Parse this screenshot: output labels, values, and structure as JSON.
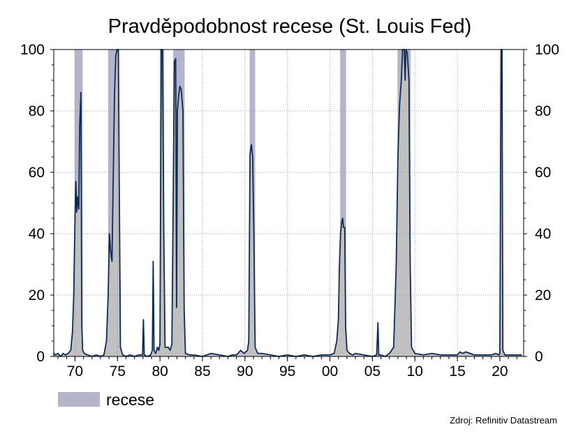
{
  "chart_data": {
    "type": "line",
    "title": "Pravděpodobnost recese (St. Louis Fed)",
    "source": "Zdroj: Refinitiv Datastream",
    "x_range": [
      1967.5,
      2022.8
    ],
    "ylim": [
      0,
      100
    ],
    "x_ticks": [
      {
        "value": 1970,
        "label": "70"
      },
      {
        "value": 1975,
        "label": "75"
      },
      {
        "value": 1980,
        "label": "80"
      },
      {
        "value": 1985,
        "label": "85"
      },
      {
        "value": 1990,
        "label": "90"
      },
      {
        "value": 1995,
        "label": "95"
      },
      {
        "value": 2000,
        "label": "00"
      },
      {
        "value": 2005,
        "label": "05"
      },
      {
        "value": 2010,
        "label": "10"
      },
      {
        "value": 2015,
        "label": "15"
      },
      {
        "value": 2020,
        "label": "20"
      }
    ],
    "y_ticks": [
      0,
      20,
      40,
      60,
      80,
      100
    ],
    "legend": {
      "label": "recese",
      "position": "bottom-left"
    },
    "colors": {
      "line": "#0d2b55",
      "recession_band": "#b4b4cc",
      "area_fill": "#c0c0c0",
      "grid": "#9a9a9a"
    },
    "recessions": [
      {
        "start": 1969.95,
        "end": 1970.9
      },
      {
        "start": 1973.9,
        "end": 1975.2
      },
      {
        "start": 1980.0,
        "end": 1980.5
      },
      {
        "start": 1981.55,
        "end": 1982.9
      },
      {
        "start": 1990.55,
        "end": 1991.2
      },
      {
        "start": 2001.2,
        "end": 2001.9
      },
      {
        "start": 2007.95,
        "end": 2009.5
      },
      {
        "start": 2020.1,
        "end": 2020.35
      }
    ],
    "series": [
      {
        "points": [
          [
            1967.5,
            1
          ],
          [
            1967.7,
            0.5
          ],
          [
            1968.0,
            1
          ],
          [
            1968.3,
            0
          ],
          [
            1968.6,
            1
          ],
          [
            1968.9,
            0.5
          ],
          [
            1969.2,
            1
          ],
          [
            1969.5,
            2
          ],
          [
            1969.7,
            8
          ],
          [
            1969.85,
            20
          ],
          [
            1970.0,
            45
          ],
          [
            1970.1,
            57
          ],
          [
            1970.2,
            47
          ],
          [
            1970.3,
            52
          ],
          [
            1970.45,
            48
          ],
          [
            1970.55,
            75
          ],
          [
            1970.7,
            86
          ],
          [
            1970.8,
            10
          ],
          [
            1970.9,
            2
          ],
          [
            1971.1,
            1
          ],
          [
            1971.5,
            0.5
          ],
          [
            1972.0,
            0
          ],
          [
            1972.5,
            0.5
          ],
          [
            1973.0,
            0
          ],
          [
            1973.4,
            0.5
          ],
          [
            1973.7,
            5
          ],
          [
            1973.9,
            20
          ],
          [
            1974.05,
            40
          ],
          [
            1974.2,
            34
          ],
          [
            1974.35,
            31
          ],
          [
            1974.5,
            58
          ],
          [
            1974.65,
            85
          ],
          [
            1974.8,
            98
          ],
          [
            1974.95,
            100
          ],
          [
            1975.1,
            100
          ],
          [
            1975.2,
            60
          ],
          [
            1975.35,
            3
          ],
          [
            1975.6,
            0.5
          ],
          [
            1976.0,
            0
          ],
          [
            1976.5,
            0.5
          ],
          [
            1977.0,
            0
          ],
          [
            1977.5,
            0.5
          ],
          [
            1977.95,
            0.5
          ],
          [
            1978.05,
            12
          ],
          [
            1978.15,
            0.5
          ],
          [
            1978.5,
            0
          ],
          [
            1978.9,
            0.5
          ],
          [
            1979.1,
            2
          ],
          [
            1979.2,
            31
          ],
          [
            1979.3,
            2
          ],
          [
            1979.5,
            1
          ],
          [
            1979.7,
            3
          ],
          [
            1979.85,
            2
          ],
          [
            1980.0,
            4
          ],
          [
            1980.15,
            100
          ],
          [
            1980.3,
            100
          ],
          [
            1980.45,
            40
          ],
          [
            1980.6,
            3
          ],
          [
            1980.8,
            3
          ],
          [
            1981.0,
            3
          ],
          [
            1981.2,
            2
          ],
          [
            1981.4,
            4
          ],
          [
            1981.55,
            50
          ],
          [
            1981.7,
            96
          ],
          [
            1981.85,
            97
          ],
          [
            1981.95,
            16
          ],
          [
            1982.05,
            80
          ],
          [
            1982.2,
            85
          ],
          [
            1982.35,
            88
          ],
          [
            1982.5,
            87
          ],
          [
            1982.7,
            80
          ],
          [
            1982.85,
            15
          ],
          [
            1983.0,
            1
          ],
          [
            1983.5,
            0.5
          ],
          [
            1984.0,
            0.5
          ],
          [
            1985.0,
            0
          ],
          [
            1986.0,
            1
          ],
          [
            1987.0,
            0.5
          ],
          [
            1988.0,
            0
          ],
          [
            1988.5,
            0.5
          ],
          [
            1989.0,
            0.5
          ],
          [
            1989.5,
            2
          ],
          [
            1989.9,
            1
          ],
          [
            1990.3,
            2
          ],
          [
            1990.45,
            5
          ],
          [
            1990.6,
            66
          ],
          [
            1990.75,
            69
          ],
          [
            1990.9,
            65
          ],
          [
            1991.05,
            40
          ],
          [
            1991.2,
            3
          ],
          [
            1991.5,
            1
          ],
          [
            1992.0,
            1
          ],
          [
            1993.0,
            0.5
          ],
          [
            1994.0,
            0
          ],
          [
            1995.0,
            0.5
          ],
          [
            1996.0,
            0
          ],
          [
            1997.0,
            0.5
          ],
          [
            1998.0,
            0
          ],
          [
            1999.0,
            0.5
          ],
          [
            2000.0,
            0.5
          ],
          [
            2000.5,
            1
          ],
          [
            2000.8,
            5
          ],
          [
            2001.0,
            12
          ],
          [
            2001.1,
            28
          ],
          [
            2001.25,
            40
          ],
          [
            2001.4,
            44
          ],
          [
            2001.5,
            45
          ],
          [
            2001.6,
            42
          ],
          [
            2001.75,
            42
          ],
          [
            2001.85,
            10
          ],
          [
            2002.0,
            2
          ],
          [
            2002.3,
            1
          ],
          [
            2002.7,
            0.5
          ],
          [
            2003.0,
            1
          ],
          [
            2004.0,
            0.5
          ],
          [
            2005.0,
            0
          ],
          [
            2005.5,
            0.5
          ],
          [
            2005.65,
            11
          ],
          [
            2005.75,
            0.5
          ],
          [
            2006.0,
            0.5
          ],
          [
            2006.5,
            0
          ],
          [
            2007.0,
            1
          ],
          [
            2007.5,
            3
          ],
          [
            2007.8,
            30
          ],
          [
            2008.0,
            65
          ],
          [
            2008.2,
            82
          ],
          [
            2008.4,
            90
          ],
          [
            2008.55,
            100
          ],
          [
            2008.75,
            100
          ],
          [
            2008.85,
            90
          ],
          [
            2008.95,
            100
          ],
          [
            2009.1,
            99
          ],
          [
            2009.3,
            90
          ],
          [
            2009.45,
            30
          ],
          [
            2009.6,
            3
          ],
          [
            2010.0,
            1
          ],
          [
            2011.0,
            0.5
          ],
          [
            2012.0,
            1
          ],
          [
            2013.0,
            0.5
          ],
          [
            2014.0,
            0.5
          ],
          [
            2015.0,
            0.5
          ],
          [
            2015.3,
            1.5
          ],
          [
            2015.6,
            1
          ],
          [
            2016.0,
            1.5
          ],
          [
            2016.5,
            1
          ],
          [
            2017.0,
            0.5
          ],
          [
            2018.0,
            0.5
          ],
          [
            2019.0,
            0.5
          ],
          [
            2019.5,
            1
          ],
          [
            2019.9,
            0.5
          ],
          [
            2020.0,
            1
          ],
          [
            2020.15,
            100
          ],
          [
            2020.25,
            100
          ],
          [
            2020.35,
            2
          ],
          [
            2020.6,
            0.5
          ],
          [
            2021.0,
            0.5
          ],
          [
            2021.5,
            0.5
          ],
          [
            2022.0,
            0.5
          ],
          [
            2022.6,
            0.5
          ]
        ]
      }
    ]
  }
}
